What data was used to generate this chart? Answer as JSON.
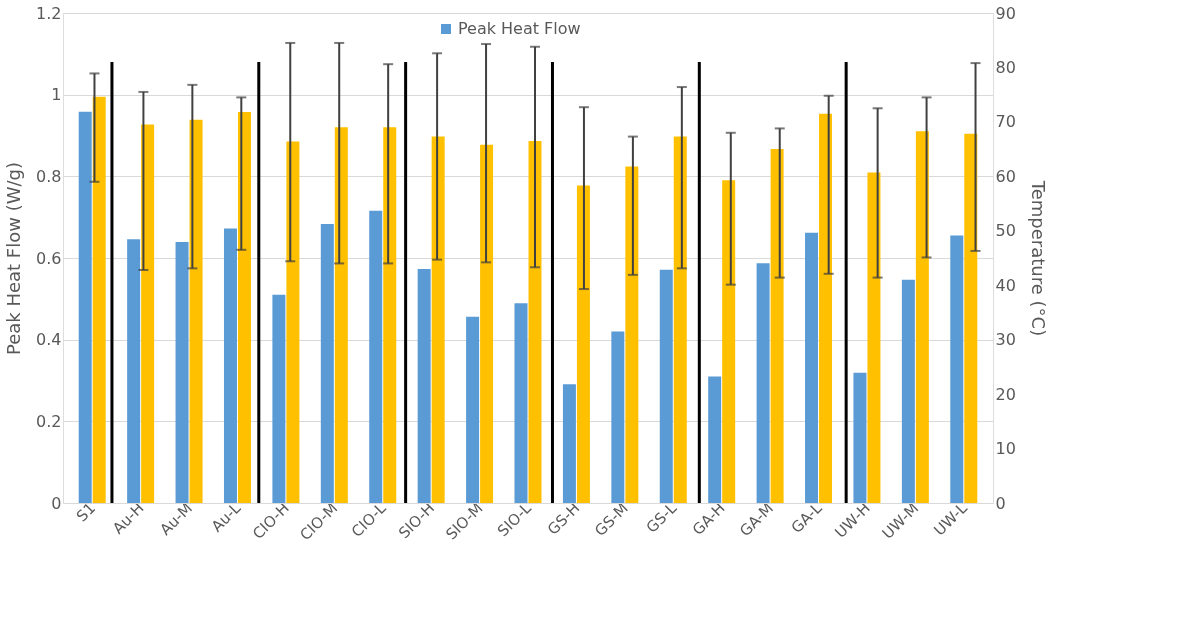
{
  "chart_data": {
    "type": "bar",
    "ylabel": "Peak Heat Flow (W/g)",
    "y2label": "Temperature (°C)",
    "categories": [
      "S1",
      "Au-H",
      "Au-M",
      "Au-L",
      "CIO-H",
      "CIO-M",
      "CIO-L",
      "SIO-H",
      "SIO-M",
      "SIO-L",
      "GS-H",
      "GS-M",
      "GS-L",
      "GA-H",
      "GA-M",
      "GA-L",
      "UW-H",
      "UW-M",
      "UW-L"
    ],
    "series": [
      {
        "name": "Peak Heat Flow",
        "color": "#5b9bd5",
        "values": [
          0.958,
          0.646,
          0.639,
          0.672,
          0.51,
          0.683,
          0.716,
          0.573,
          0.456,
          0.489,
          0.291,
          0.42,
          0.571,
          0.31,
          0.587,
          0.662,
          0.319,
          0.547,
          0.655
        ]
      },
      {
        "color": "#ffc000",
        "axis": "y2",
        "values": [
          74.6,
          69.5,
          70.4,
          71.8,
          66.4,
          69.0,
          69.0,
          67.3,
          65.8,
          66.5,
          58.3,
          61.8,
          67.3,
          59.3,
          65.0,
          71.5,
          60.7,
          68.3,
          67.8
        ],
        "errors": [
          [
            59.0,
            78.9
          ],
          [
            42.8,
            75.5
          ],
          [
            43.1,
            76.8
          ],
          [
            46.5,
            74.5
          ],
          [
            44.4,
            84.5
          ],
          [
            44.0,
            84.5
          ],
          [
            44.0,
            80.6
          ],
          [
            44.7,
            82.6
          ],
          [
            44.2,
            84.3
          ],
          [
            43.3,
            83.8
          ],
          [
            39.3,
            72.7
          ],
          [
            41.9,
            67.3
          ],
          [
            43.1,
            76.4
          ],
          [
            40.1,
            68.0
          ],
          [
            41.4,
            68.8
          ],
          [
            42.1,
            74.8
          ],
          [
            41.4,
            72.5
          ],
          [
            45.1,
            74.5
          ],
          [
            46.3,
            80.8
          ]
        ]
      }
    ],
    "ylim": [
      0,
      1.2
    ],
    "yticks": [
      0,
      0.2,
      0.4,
      0.6,
      0.8,
      1,
      1.2
    ],
    "y2lim": [
      0,
      90
    ],
    "y2ticks": [
      0,
      10,
      20,
      30,
      40,
      50,
      60,
      70,
      80,
      90
    ],
    "grid": "y",
    "legend": "top"
  }
}
